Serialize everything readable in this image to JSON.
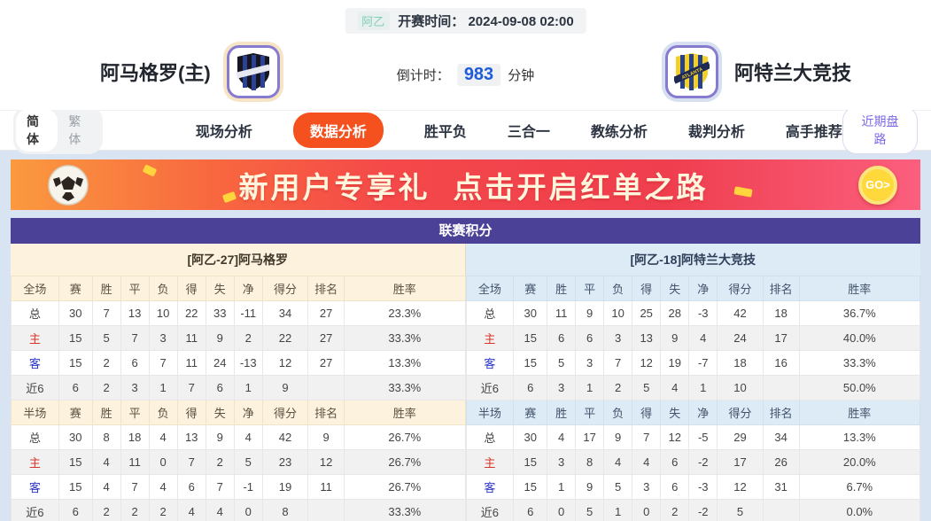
{
  "match_header": {
    "league_tag": "阿乙",
    "kickoff_label": "开赛时间：",
    "kickoff_time": "2024-09-08 02:00",
    "home_team": "阿马格罗(主)",
    "away_team": "阿特兰大竞技",
    "countdown_label": "倒计时：",
    "countdown_value": "983",
    "countdown_unit": "分钟"
  },
  "nav": {
    "lang_toggle": [
      {
        "label": "简体",
        "active": true
      },
      {
        "label": "繁体",
        "active": false
      }
    ],
    "tabs": [
      {
        "label": "现场分析",
        "active": false
      },
      {
        "label": "数据分析",
        "active": true
      },
      {
        "label": "胜平负",
        "active": false
      },
      {
        "label": "三合一",
        "active": false
      },
      {
        "label": "教练分析",
        "active": false
      },
      {
        "label": "裁判分析",
        "active": false
      },
      {
        "label": "高手推荐",
        "active": false
      }
    ],
    "recent_button": "近期盘路"
  },
  "banner": {
    "text1": "新用户专享礼",
    "text2": "点击开启红单之路",
    "go_label": "GO>"
  },
  "league_table": {
    "title": "联赛积分",
    "home": {
      "section_title": "[阿乙-27]阿马格罗",
      "fulltime_columns": [
        "全场",
        "赛",
        "胜",
        "平",
        "负",
        "得",
        "失",
        "净",
        "得分",
        "排名",
        "胜率"
      ],
      "fulltime_rows": [
        [
          "总",
          "30",
          "7",
          "13",
          "10",
          "22",
          "33",
          "-11",
          "34",
          "27",
          "23.3%"
        ],
        [
          "主",
          "15",
          "5",
          "7",
          "3",
          "11",
          "9",
          "2",
          "22",
          "27",
          "33.3%"
        ],
        [
          "客",
          "15",
          "2",
          "6",
          "7",
          "11",
          "24",
          "-13",
          "12",
          "27",
          "13.3%"
        ],
        [
          "近6",
          "6",
          "2",
          "3",
          "1",
          "7",
          "6",
          "1",
          "9",
          "",
          "33.3%"
        ]
      ],
      "halftime_columns": [
        "半场",
        "赛",
        "胜",
        "平",
        "负",
        "得",
        "失",
        "净",
        "得分",
        "排名",
        "胜率"
      ],
      "halftime_rows": [
        [
          "总",
          "30",
          "8",
          "18",
          "4",
          "13",
          "9",
          "4",
          "42",
          "9",
          "26.7%"
        ],
        [
          "主",
          "15",
          "4",
          "11",
          "0",
          "7",
          "2",
          "5",
          "23",
          "12",
          "26.7%"
        ],
        [
          "客",
          "15",
          "4",
          "7",
          "4",
          "6",
          "7",
          "-1",
          "19",
          "11",
          "26.7%"
        ],
        [
          "近6",
          "6",
          "2",
          "2",
          "2",
          "4",
          "4",
          "0",
          "8",
          "",
          "33.3%"
        ]
      ]
    },
    "away": {
      "section_title": "[阿乙-18]阿特兰大竞技",
      "fulltime_columns": [
        "全场",
        "赛",
        "胜",
        "平",
        "负",
        "得",
        "失",
        "净",
        "得分",
        "排名",
        "胜率"
      ],
      "fulltime_rows": [
        [
          "总",
          "30",
          "11",
          "9",
          "10",
          "25",
          "28",
          "-3",
          "42",
          "18",
          "36.7%"
        ],
        [
          "主",
          "15",
          "6",
          "6",
          "3",
          "13",
          "9",
          "4",
          "24",
          "17",
          "40.0%"
        ],
        [
          "客",
          "15",
          "5",
          "3",
          "7",
          "12",
          "19",
          "-7",
          "18",
          "16",
          "33.3%"
        ],
        [
          "近6",
          "6",
          "3",
          "1",
          "2",
          "5",
          "4",
          "1",
          "10",
          "",
          "50.0%"
        ]
      ],
      "halftime_columns": [
        "半场",
        "赛",
        "胜",
        "平",
        "负",
        "得",
        "失",
        "净",
        "得分",
        "排名",
        "胜率"
      ],
      "halftime_rows": [
        [
          "总",
          "30",
          "4",
          "17",
          "9",
          "7",
          "12",
          "-5",
          "29",
          "34",
          "13.3%"
        ],
        [
          "主",
          "15",
          "3",
          "8",
          "4",
          "4",
          "6",
          "-2",
          "17",
          "26",
          "20.0%"
        ],
        [
          "客",
          "15",
          "1",
          "9",
          "5",
          "3",
          "6",
          "-3",
          "12",
          "31",
          "6.7%"
        ],
        [
          "近6",
          "6",
          "0",
          "5",
          "1",
          "0",
          "2",
          "-2",
          "5",
          "",
          "0.0%"
        ]
      ]
    }
  },
  "colors": {
    "active_tab_orange": "#f4511e",
    "table_header_purple": "#4b4197",
    "home_header_cream": "#fcf2de",
    "away_header_blue": "#dcebf6",
    "home_row_label_red": "#d9342b",
    "away_row_label_blue": "#2a35cc",
    "countdown_blue": "#1f5cd9",
    "league_tag_teal": "#82ccb6",
    "banner_go_yellow": "#ffd83c",
    "page_background_blue": "#d9e4f2"
  }
}
